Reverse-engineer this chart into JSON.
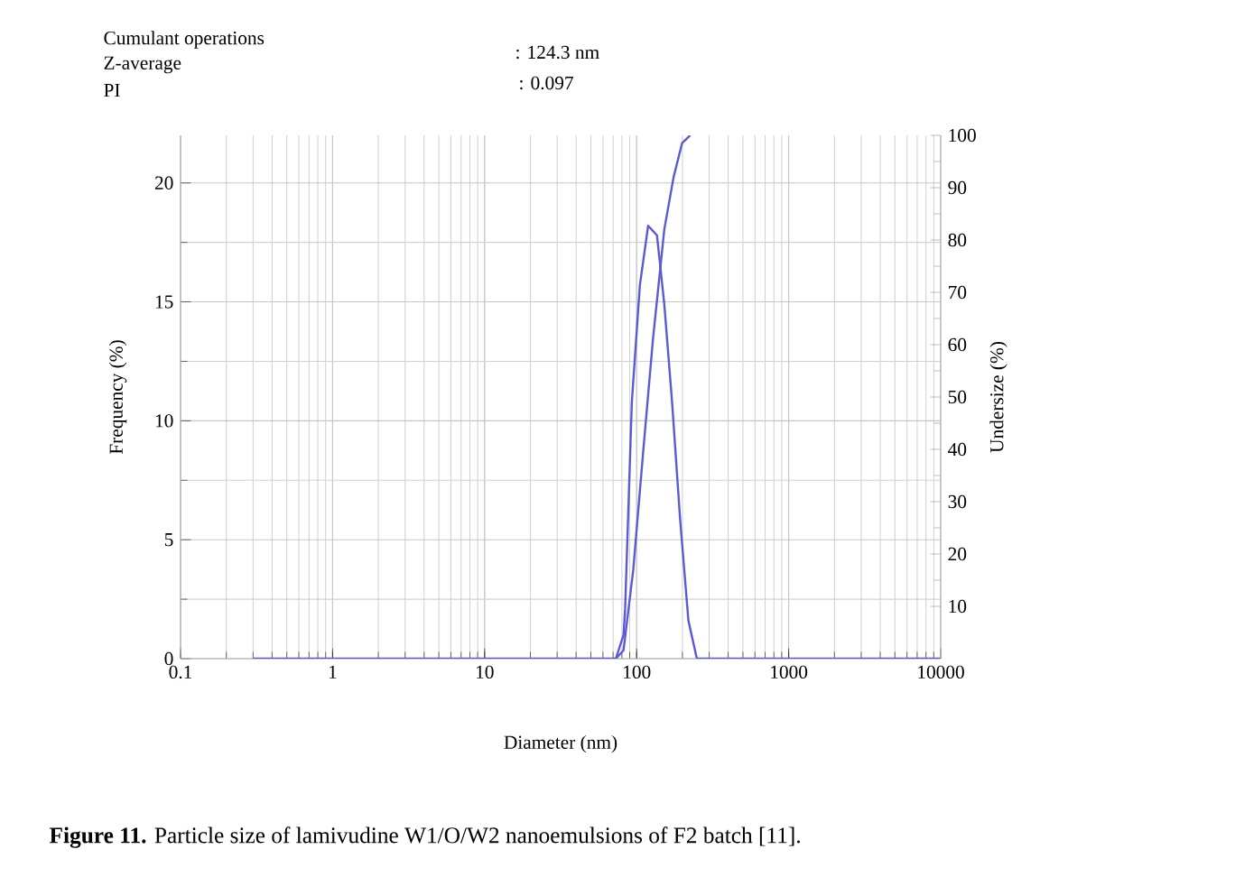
{
  "chart_data": {
    "type": "line",
    "xlabel": "Diameter (nm)",
    "ylabel": "Frequency (%)",
    "y2label": "Undersize (%)",
    "log": "x",
    "grid": true,
    "marker": "none",
    "xlim": [
      0.1,
      10000
    ],
    "xticks": [
      0.1,
      1,
      10,
      100,
      1000,
      10000
    ],
    "ylim": [
      0,
      22
    ],
    "yticks": [
      0,
      5,
      10,
      15,
      20
    ],
    "y2lim": [
      0,
      100
    ],
    "y2ticks": [
      100,
      90,
      80,
      70,
      60,
      50,
      40,
      30,
      20,
      10
    ],
    "series": [
      {
        "color": "#5a5ad6",
        "x": [
          0.3,
          73,
          82,
          84,
          93,
          105,
          119,
          136,
          152,
          171,
          193,
          219,
          249,
          10000
        ],
        "values": [
          0,
          0,
          1.0,
          2.1,
          10.8,
          15.7,
          18.2,
          17.8,
          14.9,
          10.8,
          5.9,
          1.6,
          0,
          0
        ]
      },
      {
        "color": "#5a5ad6",
        "axis": "y2",
        "x": [
          73,
          82,
          95,
          110,
          128,
          152,
          175,
          199,
          225
        ],
        "values": [
          0,
          1.6,
          17,
          39,
          61,
          82,
          92,
          98.5,
          100
        ]
      }
    ],
    "annotations": [
      "Cumulant operations",
      "Z-average",
      "PI",
      ": 124.3 nm",
      ": 0.097",
      "**Figure 11.** Particle size of lamivudine W1/O/W2 nanoemulsions of F2 batch [11]."
    ]
  }
}
